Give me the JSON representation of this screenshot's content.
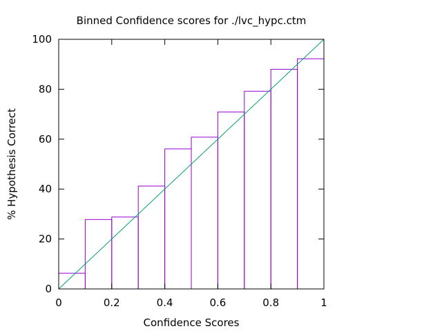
{
  "chart_data": {
    "type": "bar",
    "title": "Binned Confidence scores for ./lvc_hypc.ctm",
    "xlabel": "Confidence Scores",
    "ylabel": "% Hypothesis Correct",
    "xlim": [
      0,
      1
    ],
    "ylim": [
      0,
      100
    ],
    "x_ticks": [
      "0",
      "0.2",
      "0.4",
      "0.6",
      "0.8",
      "1"
    ],
    "y_ticks": [
      "0",
      "20",
      "40",
      "60",
      "80",
      "100"
    ],
    "bins": [
      {
        "x0": 0.0,
        "x1": 0.1,
        "value": 6.3
      },
      {
        "x0": 0.1,
        "x1": 0.2,
        "value": 27.8
      },
      {
        "x0": 0.2,
        "x1": 0.3,
        "value": 28.8
      },
      {
        "x0": 0.3,
        "x1": 0.4,
        "value": 41.2
      },
      {
        "x0": 0.4,
        "x1": 0.5,
        "value": 56.1
      },
      {
        "x0": 0.5,
        "x1": 0.6,
        "value": 60.8
      },
      {
        "x0": 0.6,
        "x1": 0.7,
        "value": 70.9
      },
      {
        "x0": 0.7,
        "x1": 0.8,
        "value": 79.2
      },
      {
        "x0": 0.8,
        "x1": 0.9,
        "value": 88.0
      },
      {
        "x0": 0.9,
        "x1": 1.0,
        "value": 92.2
      }
    ],
    "reference_line": {
      "x": [
        0,
        1
      ],
      "y": [
        0,
        100
      ]
    },
    "grid": false,
    "legend": "none",
    "colors": {
      "bars": "#9400d3",
      "reference_line": "#009e73",
      "axes": "#000000"
    }
  }
}
